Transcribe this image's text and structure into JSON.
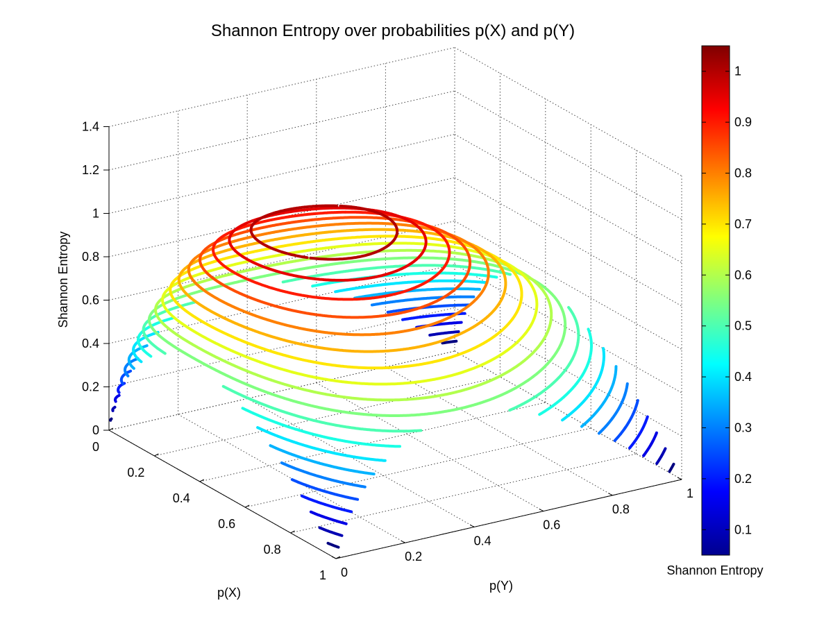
{
  "chart_data": {
    "type": "contour3d",
    "title": "Shannon Entropy over probabilities p(X) and p(Y)",
    "xlabel": "p(X)",
    "ylabel": "p(Y)",
    "zlabel": "Shannon Entropy",
    "colorbar_label": "Shannon Entropy",
    "colormap": "jet",
    "grid": true,
    "function": "H(x,y) = -x*log2(x) - y*log2(y)",
    "xlim": [
      0,
      1
    ],
    "ylim": [
      0,
      1
    ],
    "zlim": [
      0,
      1.4
    ],
    "clim": [
      0.05,
      1.05
    ],
    "x_ticks": [
      "0",
      "0.2",
      "0.4",
      "0.6",
      "0.8",
      "1"
    ],
    "y_ticks": [
      "0",
      "0.2",
      "0.4",
      "0.6",
      "0.8",
      "1"
    ],
    "z_ticks": [
      "0",
      "0.2",
      "0.4",
      "0.6",
      "0.8",
      "1",
      "1.2",
      "1.4"
    ],
    "colorbar_ticks": [
      "0.1",
      "0.2",
      "0.3",
      "0.4",
      "0.5",
      "0.6",
      "0.7",
      "0.8",
      "0.9",
      "1"
    ],
    "contour_levels": [
      0.05,
      0.1,
      0.15,
      0.2,
      0.25,
      0.3,
      0.35,
      0.4,
      0.45,
      0.5,
      0.55,
      0.6,
      0.65,
      0.7,
      0.75,
      0.8,
      0.85,
      0.9,
      0.95,
      1.0
    ]
  }
}
